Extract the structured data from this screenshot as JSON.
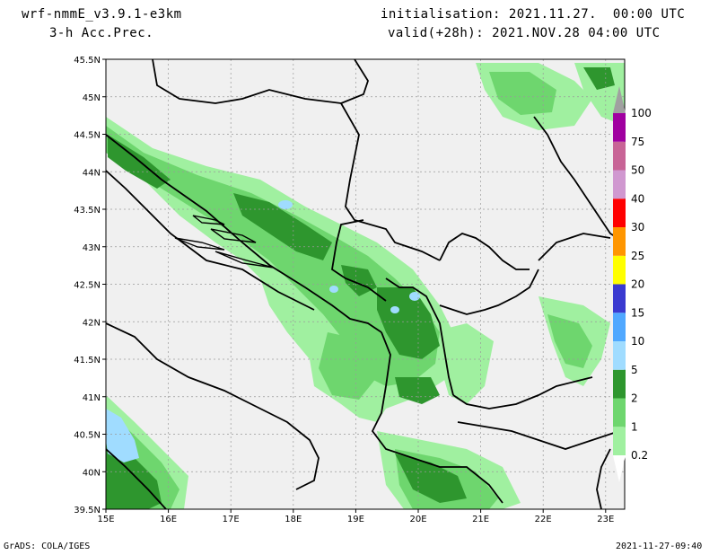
{
  "header": {
    "model": "wrf-nmmE_v3.9.1-e3km",
    "field": "3-h Acc.Prec.",
    "init": "initialisation: 2021.11.27.  00:00 UTC",
    "valid": "valid(+28h): 2021.NOV.28 04:00 UTC"
  },
  "footer": {
    "left": "GrADS: COLA/IGES",
    "right": "2021-11-27-09:40"
  },
  "map": {
    "lat_labels": [
      "45.5N",
      "45N",
      "44.5N",
      "44N",
      "43.5N",
      "43N",
      "42.5N",
      "42N",
      "41.5N",
      "41N",
      "40.5N",
      "40N",
      "39.5N"
    ],
    "lon_labels": [
      "15E",
      "16E",
      "17E",
      "18E",
      "19E",
      "20E",
      "21E",
      "22E",
      "23E"
    ],
    "background": "#f0f0f0",
    "border_color": "#000000"
  },
  "colorbar": {
    "levels": [
      "0.2",
      "1",
      "2",
      "5",
      "10",
      "15",
      "20",
      "25",
      "30",
      "40",
      "50",
      "75",
      "100"
    ],
    "colors": [
      "#a0f0a0",
      "#6ed66e",
      "#2e962e",
      "#a0dcff",
      "#50a8ff",
      "#3a3ad0",
      "#ffff00",
      "#ff9600",
      "#ff0000",
      "#d098d0",
      "#c86496",
      "#a000a0",
      "#a0a0a0"
    ]
  }
}
